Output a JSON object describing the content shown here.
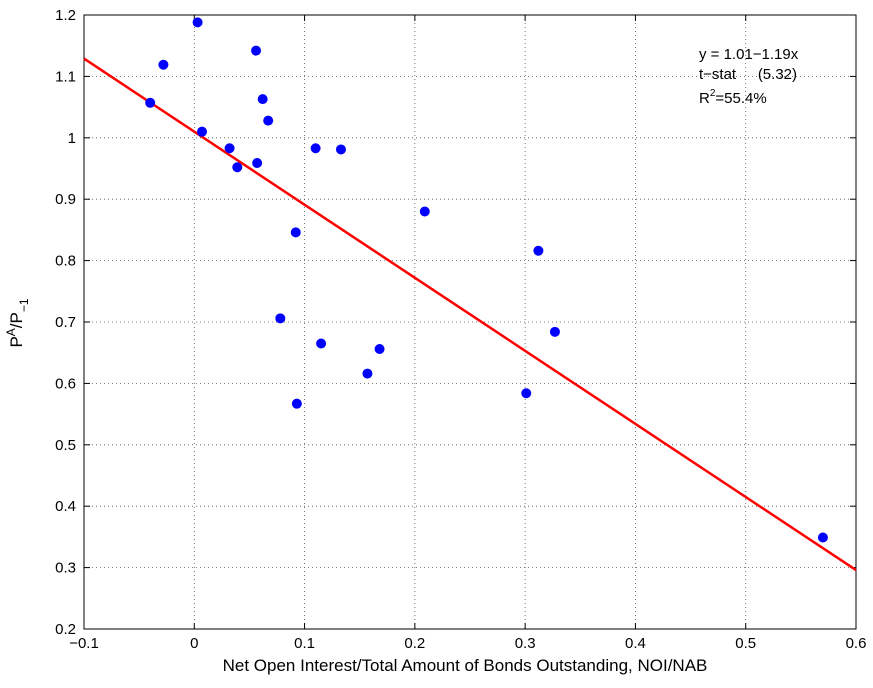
{
  "chart_data": {
    "type": "scatter",
    "title": "",
    "xlabel": "Net Open Interest/Total Amount of Bonds Outstanding, NOI/NAB",
    "ylabel": {
      "base": "P",
      "sup": "A",
      "slash": "/P",
      "sub": "−1"
    },
    "xlim": [
      -0.1,
      0.6
    ],
    "ylim": [
      0.2,
      1.2
    ],
    "xticks": [
      -0.1,
      0,
      0.1,
      0.2,
      0.3,
      0.4,
      0.5,
      0.6
    ],
    "yticks": [
      0.2,
      0.3,
      0.4,
      0.5,
      0.6,
      0.7,
      0.8,
      0.9,
      1,
      1.1,
      1.2
    ],
    "xtick_labels": [
      "−0.1",
      "0",
      "0.1",
      "0.2",
      "0.3",
      "0.4",
      "0.5",
      "0.6"
    ],
    "ytick_labels": [
      "0.2",
      "0.3",
      "0.4",
      "0.5",
      "0.6",
      "0.7",
      "0.8",
      "0.9",
      "1",
      "1.1",
      "1.2"
    ],
    "grid": true,
    "grid_style": "dotted",
    "series": [
      {
        "kind": "scatter",
        "color": "#0000ff",
        "points": [
          [
            -0.04,
            1.057
          ],
          [
            -0.028,
            1.119
          ],
          [
            0.003,
            1.188
          ],
          [
            0.007,
            1.01
          ],
          [
            0.032,
            0.983
          ],
          [
            0.039,
            0.952
          ],
          [
            0.056,
            1.142
          ],
          [
            0.057,
            0.959
          ],
          [
            0.062,
            1.063
          ],
          [
            0.067,
            1.028
          ],
          [
            0.078,
            0.706
          ],
          [
            0.092,
            0.846
          ],
          [
            0.093,
            0.567
          ],
          [
            0.11,
            0.983
          ],
          [
            0.115,
            0.665
          ],
          [
            0.133,
            0.981
          ],
          [
            0.157,
            0.616
          ],
          [
            0.168,
            0.656
          ],
          [
            0.209,
            0.88
          ],
          [
            0.301,
            0.584
          ],
          [
            0.312,
            0.816
          ],
          [
            0.327,
            0.684
          ],
          [
            0.57,
            0.349
          ]
        ]
      },
      {
        "kind": "fit_line",
        "color": "#ff0000",
        "intercept": 1.01,
        "slope": -1.19,
        "x_range": [
          -0.1,
          0.6
        ]
      }
    ],
    "annotations": {
      "equation": "y = 1.01−1.19x",
      "tstat_label": "t−stat",
      "tstat_value": "(5.32)",
      "r2_base": "R",
      "r2_sup": "2",
      "r2_rest": "=55.4%"
    }
  }
}
